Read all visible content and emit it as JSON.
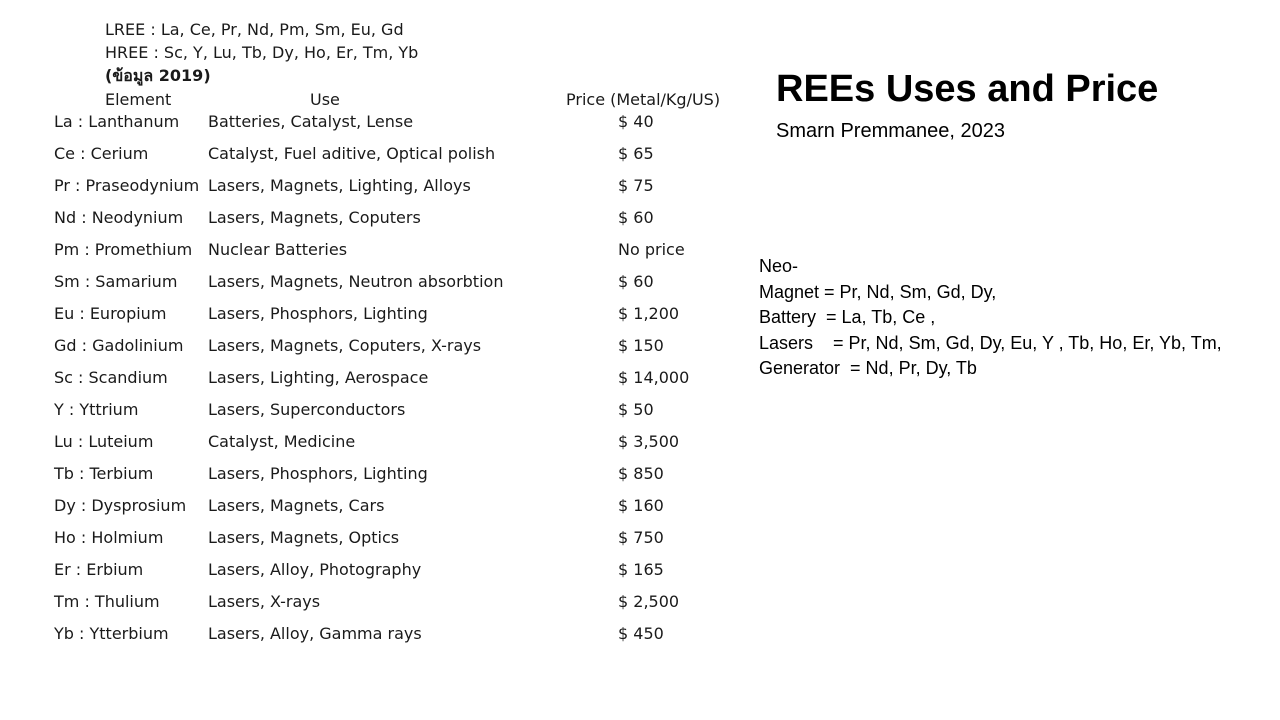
{
  "intro": {
    "lree": "LREE : La, Ce, Pr, Nd, Pm, Sm, Eu, Gd",
    "hree": "HREE : Sc, Y, Lu, Tb, Dy, Ho, Er, Tm, Yb",
    "data_year": "(ข้อมูล 2019)"
  },
  "table": {
    "headers": {
      "element": "Element",
      "use": "Use",
      "price": "Price (Metal/Kg/US)"
    },
    "rows": [
      {
        "element": "La : Lanthanum",
        "use": "Batteries, Catalyst, Lense",
        "price": "$ 40"
      },
      {
        "element": "Ce : Cerium",
        "use": "Catalyst, Fuel aditive, Optical polish",
        "price": "$ 65"
      },
      {
        "element": "Pr : Praseodynium",
        "use": "Lasers, Magnets, Lighting, Alloys",
        "price": "$ 75"
      },
      {
        "element": "Nd : Neodynium",
        "use": "Lasers, Magnets, Coputers",
        "price": "$ 60"
      },
      {
        "element": "Pm : Promethium",
        "use": "Nuclear Batteries",
        "price": "No price"
      },
      {
        "element": "Sm : Samarium",
        "use": "Lasers, Magnets, Neutron absorbtion",
        "price": "$ 60"
      },
      {
        "element": "Eu : Europium",
        "use": "Lasers, Phosphors, Lighting",
        "price": "$ 1,200"
      },
      {
        "element": "Gd : Gadolinium",
        "use": "Lasers, Magnets, Coputers, X-rays",
        "price": "$ 150"
      },
      {
        "element": "Sc : Scandium",
        "use": "Lasers, Lighting, Aerospace",
        "price": "$ 14,000"
      },
      {
        "element": "Y : Yttrium",
        "use": "Lasers, Superconductors",
        "price": "$ 50"
      },
      {
        "element": "Lu : Luteium",
        "use": "Catalyst, Medicine",
        "price": "$ 3,500"
      },
      {
        "element": "Tb : Terbium",
        "use": "Lasers, Phosphors, Lighting",
        "price": "$ 850"
      },
      {
        "element": "Dy : Dysprosium",
        "use": "Lasers, Magnets, Cars",
        "price": "$ 160"
      },
      {
        "element": "Ho : Holmium",
        "use": "Lasers, Magnets, Optics",
        "price": "$ 750"
      },
      {
        "element": "Er : Erbium",
        "use": "Lasers, Alloy, Photography",
        "price": "$ 165"
      },
      {
        "element": "Tm : Thulium",
        "use": "Lasers, X-rays",
        "price": "$ 2,500"
      },
      {
        "element": "Yb : Ytterbium",
        "use": "Lasers, Alloy, Gamma rays",
        "price": "$ 450"
      }
    ]
  },
  "slide": {
    "title": "REEs Uses and Price",
    "subtitle": "Smarn Premmanee, 2023"
  },
  "notes": [
    "Neo-",
    "Magnet = Pr, Nd, Sm, Gd, Dy,",
    "Battery  = La, Tb, Ce ,",
    "Lasers    = Pr, Nd, Sm, Gd, Dy, Eu, Y , Tb, Ho, Er, Yb, Tm,",
    "Generator  = Nd, Pr, Dy, Tb"
  ]
}
